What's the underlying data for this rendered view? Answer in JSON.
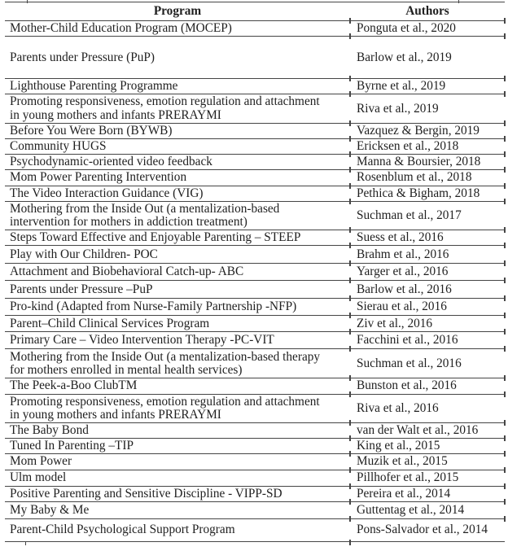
{
  "table": {
    "columns": [
      {
        "label": "Program"
      },
      {
        "label": "Authors"
      }
    ],
    "rows": [
      {
        "program": "Mother-Child Education Program (MOCEP)",
        "authors": "Ponguta et al., 2020"
      },
      {
        "program": "Parents under Pressure (PuP)",
        "authors": "Barlow et al., 2019"
      },
      {
        "program": "Lighthouse Parenting Programme",
        "authors": "Byrne et al., 2019"
      },
      {
        "program": "Promoting responsiveness, emotion regulation and attachment\nin young mothers and infants PRERAYMI",
        "authors": "Riva et al., 2019"
      },
      {
        "program": "Before You Were Born (BYWB)",
        "authors": "Vazquez & Bergin, 2019"
      },
      {
        "program": "Community HUGS",
        "authors": "Ericksen et al., 2018"
      },
      {
        "program": "Psychodynamic-oriented video feedback",
        "authors": "Manna & Boursier, 2018"
      },
      {
        "program": "Mom Power Parenting Intervention",
        "authors": "Rosenblum et al., 2018"
      },
      {
        "program": "The Video Interaction Guidance (VIG)",
        "authors": "Pethica & Bigham, 2018"
      },
      {
        "program": "Mothering from the Inside Out (a mentalization-based\nintervention for mothers in addiction treatment)",
        "authors": "Suchman et al., 2017"
      },
      {
        "program": "Steps Toward Effective and Enjoyable Parenting – STEEP",
        "authors": "Suess et al., 2016"
      },
      {
        "program": "Play with Our Children- POC",
        "authors": "Brahm et al., 2016"
      },
      {
        "program": "Attachment and Biobehavioral Catch-up- ABC",
        "authors": "Yarger et al., 2016"
      },
      {
        "program": "Parents under Pressure –PuP",
        "authors": "Barlow et al., 2016"
      },
      {
        "program": "Pro-kind (Adapted from Nurse-Family Partnership -NFP)",
        "authors": "Sierau et al., 2016"
      },
      {
        "program": "Parent–Child Clinical Services Program",
        "authors": "Ziv et al., 2016"
      },
      {
        "program": "Primary Care – Video Intervention Therapy -PC-VIT",
        "authors": "Facchini et al., 2016"
      },
      {
        "program": "Mothering from the Inside Out (a mentalization-based therapy\nfor mothers enrolled in mental health services)",
        "authors": "Suchman et al., 2016"
      },
      {
        "program": "The Peek-a-Boo ClubTM",
        "authors": "Bunston et al., 2016"
      },
      {
        "program": "Promoting responsiveness, emotion regulation and attachment\nin young mothers and infants PRERAYMI",
        "authors": "Riva et al., 2016"
      },
      {
        "program": "The Baby Bond",
        "authors": "van der Walt et al., 2016"
      },
      {
        "program": "Tuned In Parenting –TIP",
        "authors": "King et al., 2015"
      },
      {
        "program": "Mom Power",
        "authors": "Muzik et al., 2015"
      },
      {
        "program": "Ulm model",
        "authors": "Pillhofer et al., 2015"
      },
      {
        "program": "Positive Parenting and Sensitive Discipline - VIPP-SD",
        "authors": "Pereira et al., 2014"
      },
      {
        "program": "My Baby & Me",
        "authors": "Guttentag et al., 2014"
      },
      {
        "program": "Parent-Child Psychological Support Program",
        "authors": "Pons-Salvador et al., 2014"
      }
    ]
  }
}
